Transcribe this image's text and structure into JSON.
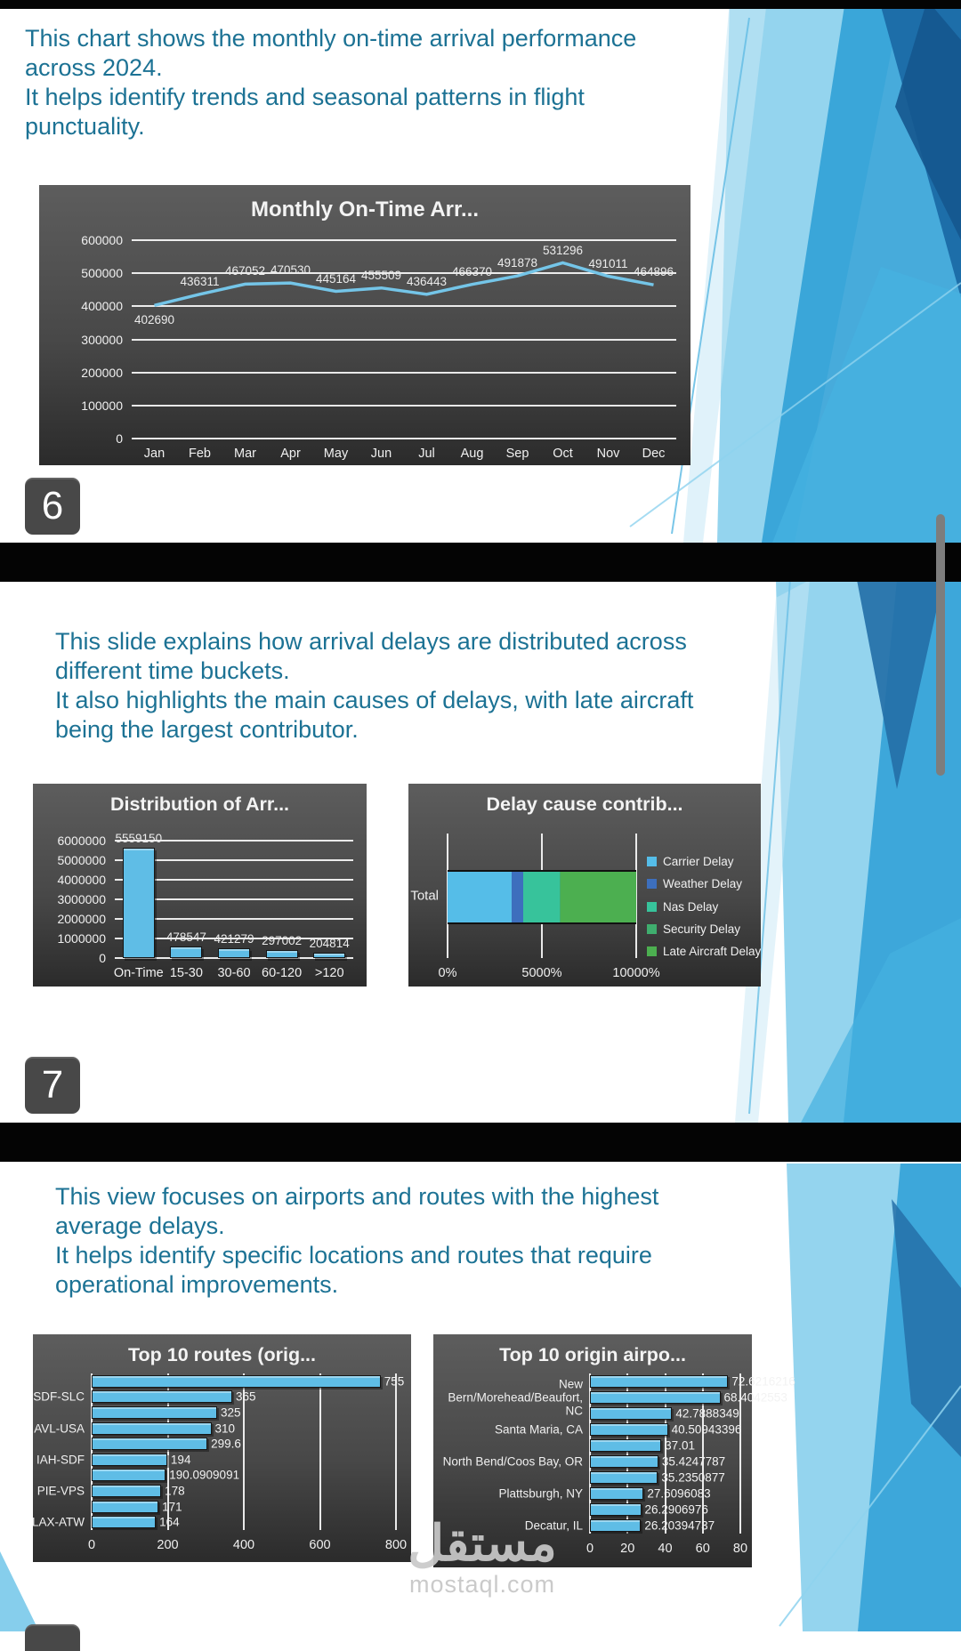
{
  "slide6": {
    "caption_lines": [
      "This chart shows the monthly on-time arrival performance",
      "across 2024.",
      "It helps identify trends and seasonal patterns in flight",
      "punctuality."
    ],
    "page_badge": "6"
  },
  "slide7": {
    "caption_lines": [
      "This slide explains how arrival delays are distributed across",
      "different time buckets.",
      "It also highlights the main causes of delays, with late aircraft",
      "being the largest contributor."
    ],
    "page_badge": "7"
  },
  "slide8": {
    "caption_lines": [
      "This view focuses on airports and routes with the highest",
      "average delays.",
      "It helps identify specific locations and routes that require",
      "operational improvements."
    ]
  },
  "watermark": {
    "logo_text": "مستقل",
    "site_text": "mostaql.com"
  },
  "colors": {
    "caption_text": "#1c7294",
    "bar_blue": "#5fbde6",
    "line_blue": "#74c5e8",
    "panel_dark": "#4a4a4a",
    "accent_light_blue": "#79c9ea",
    "accent_mid_blue": "#2e9fd6",
    "accent_dark_blue": "#1b6aa6"
  },
  "chart_data": [
    {
      "id": "monthly_on_time",
      "type": "line",
      "title": "Monthly On-Time Arr...",
      "categories": [
        "Jan",
        "Feb",
        "Mar",
        "Apr",
        "May",
        "Jun",
        "Jul",
        "Aug",
        "Sep",
        "Oct",
        "Nov",
        "Dec"
      ],
      "values": [
        402690,
        436311,
        467052,
        470530,
        445164,
        455509,
        436443,
        466370,
        491878,
        531296,
        491011,
        464896
      ],
      "ylim": [
        0,
        600000
      ],
      "yticks": [
        0,
        100000,
        200000,
        300000,
        400000,
        500000,
        600000
      ],
      "grid": true,
      "line_color": "#74c5e8",
      "label_below": [
        0
      ]
    },
    {
      "id": "delay_distribution",
      "type": "bar",
      "title": "Distribution of Arr...",
      "categories": [
        "On-Time",
        "15-30",
        "30-60",
        "60-120",
        ">120"
      ],
      "values": [
        5559150,
        478547,
        421279,
        297002,
        204814
      ],
      "ylim": [
        0,
        6000000
      ],
      "yticks": [
        0,
        1000000,
        2000000,
        3000000,
        4000000,
        5000000,
        6000000
      ],
      "grid": true,
      "bar_color": "#5fbde6"
    },
    {
      "id": "delay_cause",
      "type": "stackedbar",
      "title": "Delay cause contrib...",
      "category": "Total",
      "legend_position": "right",
      "xticks": [
        "0%",
        "5000%",
        "10000%"
      ],
      "series": [
        {
          "name": "Carrier Delay",
          "color": "#55bde8",
          "percent": 33.8
        },
        {
          "name": "Weather Delay",
          "color": "#3d6fbd",
          "percent": 6.4
        },
        {
          "name": "Nas Delay",
          "color": "#37c39b",
          "percent": 19.1
        },
        {
          "name": "Security Delay",
          "color": "#3fae6e",
          "percent": 0.4
        },
        {
          "name": "Late Aircraft Delay",
          "color": "#4caf50",
          "percent": 40.3
        }
      ]
    },
    {
      "id": "top_routes",
      "type": "hbar",
      "title": "Top 10 routes (orig...",
      "row_labels": [
        "",
        "SDF-SLC",
        "",
        "AVL-USA",
        "",
        "IAH-SDF",
        "",
        "PIE-VPS",
        "",
        "LAX-ATW"
      ],
      "values": [
        755,
        365,
        325,
        310,
        299.6,
        194,
        190.0909091,
        178,
        171,
        164
      ],
      "xlim": [
        0,
        800
      ],
      "xticks": [
        "0",
        "200",
        "400",
        "600",
        "800"
      ],
      "grid": true,
      "bar_color": "#5fbde6"
    },
    {
      "id": "top_origin_airports",
      "type": "hbar",
      "title": "Top 10 origin airpo...",
      "row_labels": [
        "",
        "New Bern/Morehead/Beaufort, NC",
        "",
        "Santa Maria, CA",
        "",
        "North Bend/Coos Bay, OR",
        "",
        "Plattsburgh, NY",
        "",
        "Decatur, IL"
      ],
      "values": [
        72.6216216,
        68.4042553,
        42.7888349,
        40.50943396,
        37.01,
        35.4247787,
        35.2350877,
        27.6096083,
        26.2906976,
        26.20394737
      ],
      "xlim": [
        0,
        80
      ],
      "xticks": [
        "0",
        "20",
        "40",
        "60",
        "80"
      ],
      "grid": true,
      "bar_color": "#5fbde6"
    }
  ]
}
